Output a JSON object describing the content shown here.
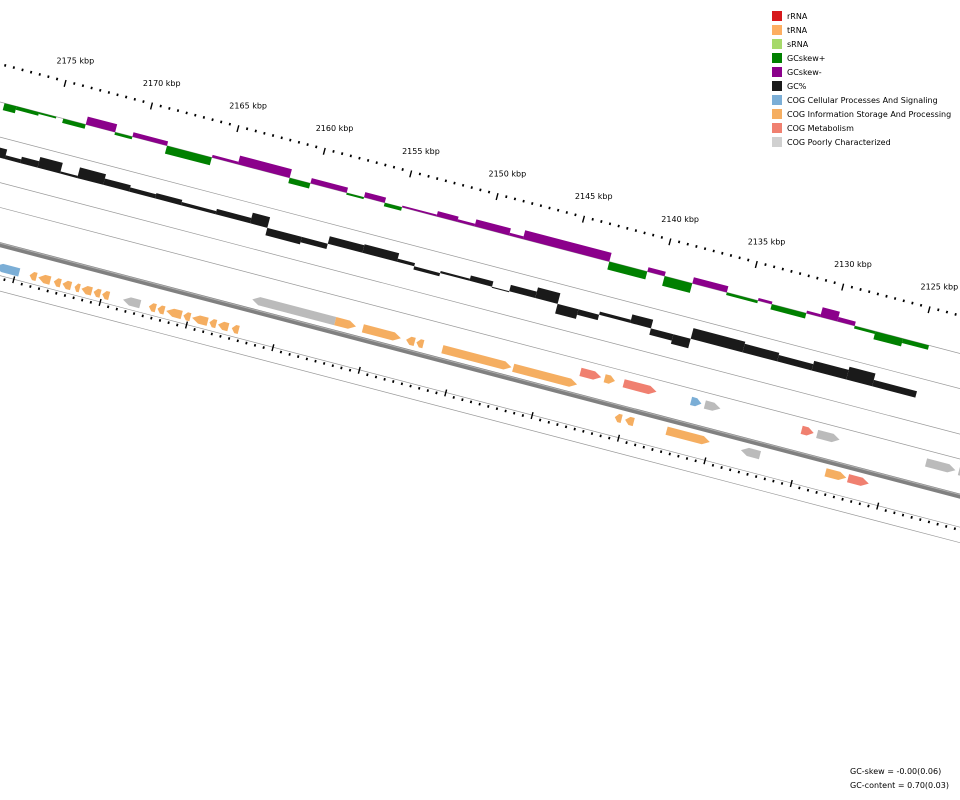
{
  "position_labels": [
    {
      "kbp": 2175,
      "label": "2175 kbp"
    },
    {
      "kbp": 2170,
      "label": "2170 kbp"
    },
    {
      "kbp": 2165,
      "label": "2165 kbp"
    },
    {
      "kbp": 2160,
      "label": "2160 kbp"
    },
    {
      "kbp": 2155,
      "label": "2155 kbp"
    },
    {
      "kbp": 2150,
      "label": "2150 kbp"
    },
    {
      "kbp": 2145,
      "label": "2145 kbp"
    },
    {
      "kbp": 2140,
      "label": "2140 kbp"
    },
    {
      "kbp": 2135,
      "label": "2135 kbp"
    },
    {
      "kbp": 2130,
      "label": "2130 kbp"
    },
    {
      "kbp": 2125,
      "label": "2125 kbp"
    }
  ],
  "legend": [
    {
      "label": "rRNA",
      "color": "#d7191c"
    },
    {
      "label": "tRNA",
      "color": "#fdae61"
    },
    {
      "label": "sRNA",
      "color": "#a6d96a"
    },
    {
      "label": "GCskew+",
      "color": "#008000"
    },
    {
      "label": "GCskew-",
      "color": "#8b008b"
    },
    {
      "label": "GC%",
      "color": "#1a1a1a"
    },
    {
      "label": "COG Cellular Processes And Signaling",
      "color": "#7baed6"
    },
    {
      "label": "COG Information Storage And Processing",
      "color": "#f5ae61"
    },
    {
      "label": "COG Metabolism",
      "color": "#f08070"
    },
    {
      "label": "COG Poorly Characterized",
      "color": "#d0d0d0"
    }
  ],
  "stats": {
    "gc_skew": "GC-skew = -0.00(0.06)",
    "gc_content": "GC-content = 0.70(0.03)"
  },
  "colors": {
    "gc_skew_plus": "#008000",
    "gc_skew_minus": "#8b008b",
    "gc_content": "#1a1a1a",
    "backbone": "#808080",
    "guide": "#999999",
    "cog_cellular": "#7baed6",
    "cog_information": "#f5ae61",
    "cog_metabolism": "#f08070",
    "cog_poor": "#bbbbbb"
  },
  "gc_skew_segments": [
    {
      "from": 2178.0,
      "to": 2177.3,
      "sign": "+",
      "magnitude": 0.8
    },
    {
      "from": 2177.3,
      "to": 2176.0,
      "sign": "+",
      "magnitude": 0.4
    },
    {
      "from": 2176.0,
      "to": 2175.0,
      "sign": "+",
      "magnitude": 0.2
    },
    {
      "from": 2174.6,
      "to": 2173.3,
      "sign": "+",
      "magnitude": 0.5
    },
    {
      "from": 2173.3,
      "to": 2171.6,
      "sign": "-",
      "magnitude": 0.9
    },
    {
      "from": 2171.6,
      "to": 2170.6,
      "sign": "+",
      "magnitude": 0.3
    },
    {
      "from": 2170.6,
      "to": 2168.6,
      "sign": "-",
      "magnitude": 0.5
    },
    {
      "from": 2168.6,
      "to": 2166.0,
      "sign": "+",
      "magnitude": 0.9
    },
    {
      "from": 2166.0,
      "to": 2164.5,
      "sign": "-",
      "magnitude": 0.3
    },
    {
      "from": 2164.5,
      "to": 2161.5,
      "sign": "-",
      "magnitude": 1.0
    },
    {
      "from": 2161.5,
      "to": 2160.3,
      "sign": "+",
      "magnitude": 0.6
    },
    {
      "from": 2160.3,
      "to": 2158.2,
      "sign": "-",
      "magnitude": 0.6
    },
    {
      "from": 2158.2,
      "to": 2157.2,
      "sign": "+",
      "magnitude": 0.2
    },
    {
      "from": 2157.2,
      "to": 2156.0,
      "sign": "-",
      "magnitude": 0.6
    },
    {
      "from": 2156.0,
      "to": 2155.0,
      "sign": "+",
      "magnitude": 0.4
    },
    {
      "from": 2155.0,
      "to": 2153.0,
      "sign": "-",
      "magnitude": 0.2
    },
    {
      "from": 2153.0,
      "to": 2151.8,
      "sign": "-",
      "magnitude": 0.6
    },
    {
      "from": 2151.8,
      "to": 2150.8,
      "sign": "-",
      "magnitude": 0.3
    },
    {
      "from": 2150.8,
      "to": 2148.8,
      "sign": "-",
      "magnitude": 0.8
    },
    {
      "from": 2148.8,
      "to": 2148.0,
      "sign": "-",
      "magnitude": 0.3
    },
    {
      "from": 2148.0,
      "to": 2143.0,
      "sign": "-",
      "magnitude": 1.0
    },
    {
      "from": 2143.0,
      "to": 2140.8,
      "sign": "+",
      "magnitude": 0.9
    },
    {
      "from": 2140.8,
      "to": 2139.8,
      "sign": "-",
      "magnitude": 0.5
    },
    {
      "from": 2139.8,
      "to": 2138.2,
      "sign": "+",
      "magnitude": 1.1
    },
    {
      "from": 2138.2,
      "to": 2136.2,
      "sign": "-",
      "magnitude": 0.7
    },
    {
      "from": 2136.2,
      "to": 2134.4,
      "sign": "+",
      "magnitude": 0.3
    },
    {
      "from": 2134.4,
      "to": 2133.6,
      "sign": "-",
      "magnitude": 0.3
    },
    {
      "from": 2133.6,
      "to": 2131.6,
      "sign": "+",
      "magnitude": 0.6
    },
    {
      "from": 2131.6,
      "to": 2130.8,
      "sign": "-",
      "magnitude": 0.3
    },
    {
      "from": 2130.8,
      "to": 2129.8,
      "sign": "-",
      "magnitude": 1.1
    },
    {
      "from": 2129.8,
      "to": 2128.8,
      "sign": "-",
      "magnitude": 0.5
    },
    {
      "from": 2128.8,
      "to": 2127.6,
      "sign": "+",
      "magnitude": 0.3
    },
    {
      "from": 2127.6,
      "to": 2126.0,
      "sign": "+",
      "magnitude": 0.9
    },
    {
      "from": 2126.0,
      "to": 2124.5,
      "sign": "+",
      "magnitude": 0.5
    }
  ],
  "gc_content_segments": [
    {
      "from": 2178.0,
      "to": 2177.2,
      "level": 0.9
    },
    {
      "from": 2177.2,
      "to": 2176.3,
      "level": 0.35
    },
    {
      "from": 2176.3,
      "to": 2175.3,
      "level": 0.6
    },
    {
      "from": 2175.3,
      "to": 2174.0,
      "level": 1.0
    },
    {
      "from": 2174.0,
      "to": 2173.0,
      "level": 0.2
    },
    {
      "from": 2173.0,
      "to": 2171.5,
      "level": 1.0
    },
    {
      "from": 2171.5,
      "to": 2170.0,
      "level": 0.6
    },
    {
      "from": 2170.0,
      "to": 2168.5,
      "level": 0.4
    },
    {
      "from": 2168.5,
      "to": 2167.0,
      "level": 0.5
    },
    {
      "from": 2167.0,
      "to": 2165.0,
      "level": 0.3
    },
    {
      "from": 2165.0,
      "to": 2163.0,
      "level": 0.5
    },
    {
      "from": 2163.0,
      "to": 2162.0,
      "level": 1.0
    },
    {
      "from": 2162.0,
      "to": 2160.0,
      "level": -0.7
    },
    {
      "from": 2160.0,
      "to": 2158.5,
      "level": -0.5
    },
    {
      "from": 2158.5,
      "to": 2156.5,
      "level": 0.7
    },
    {
      "from": 2156.5,
      "to": 2154.5,
      "level": 0.8
    },
    {
      "from": 2154.5,
      "to": 2153.5,
      "level": 0.3
    },
    {
      "from": 2153.5,
      "to": 2152.0,
      "level": -0.3
    },
    {
      "from": 2152.0,
      "to": 2150.3,
      "level": 0.2
    },
    {
      "from": 2150.3,
      "to": 2149.0,
      "level": 0.5
    },
    {
      "from": 2149.0,
      "to": 2148.0,
      "level": -0.1
    },
    {
      "from": 2148.0,
      "to": 2146.5,
      "level": 0.6
    },
    {
      "from": 2146.5,
      "to": 2145.2,
      "level": 1.0
    },
    {
      "from": 2145.2,
      "to": 2144.0,
      "level": -0.9
    },
    {
      "from": 2144.0,
      "to": 2142.8,
      "level": -0.5
    },
    {
      "from": 2142.8,
      "to": 2141.0,
      "level": 0.3
    },
    {
      "from": 2141.0,
      "to": 2139.8,
      "level": 0.8
    },
    {
      "from": 2139.8,
      "to": 2138.5,
      "level": -0.6
    },
    {
      "from": 2138.5,
      "to": 2137.5,
      "level": -0.9
    },
    {
      "from": 2137.5,
      "to": 2134.5,
      "level": 1.0
    },
    {
      "from": 2134.5,
      "to": 2132.5,
      "level": 0.8
    },
    {
      "from": 2132.5,
      "to": 2130.5,
      "level": 0.6
    },
    {
      "from": 2130.5,
      "to": 2128.5,
      "level": 0.9
    },
    {
      "from": 2128.5,
      "to": 2127.0,
      "level": 1.2
    },
    {
      "from": 2127.0,
      "to": 2124.5,
      "level": 0.6
    }
  ],
  "genes_reverse": [
    {
      "from": 2178.0,
      "to": 2177.1,
      "cog": "information"
    },
    {
      "from": 2176.9,
      "to": 2176.3,
      "cog": "metabolism"
    },
    {
      "from": 2176.2,
      "to": 2174.8,
      "cog": "cellular"
    },
    {
      "from": 2174.2,
      "to": 2173.8,
      "cog": "information"
    },
    {
      "from": 2173.7,
      "to": 2173.0,
      "cog": "information"
    },
    {
      "from": 2172.8,
      "to": 2172.4,
      "cog": "information"
    },
    {
      "from": 2172.3,
      "to": 2171.8,
      "cog": "information"
    },
    {
      "from": 2171.6,
      "to": 2171.3,
      "cog": "information"
    },
    {
      "from": 2171.2,
      "to": 2170.6,
      "cog": "information"
    },
    {
      "from": 2170.5,
      "to": 2170.1,
      "cog": "information"
    },
    {
      "from": 2170.0,
      "to": 2169.6,
      "cog": "information"
    },
    {
      "from": 2168.8,
      "to": 2167.8,
      "cog": "poor"
    },
    {
      "from": 2167.3,
      "to": 2166.9,
      "cog": "information"
    },
    {
      "from": 2166.8,
      "to": 2166.4,
      "cog": "information"
    },
    {
      "from": 2166.3,
      "to": 2165.4,
      "cog": "information"
    },
    {
      "from": 2165.3,
      "to": 2164.9,
      "cog": "information"
    },
    {
      "from": 2164.8,
      "to": 2163.9,
      "cog": "information"
    },
    {
      "from": 2163.8,
      "to": 2163.4,
      "cog": "information"
    },
    {
      "from": 2163.3,
      "to": 2162.7,
      "cog": "information"
    },
    {
      "from": 2162.5,
      "to": 2162.1,
      "cog": "information"
    }
  ],
  "genes_upper": [
    {
      "from": 2161.8,
      "to": 2157.0,
      "strand": "-",
      "cog": "poor"
    },
    {
      "from": 2157.0,
      "to": 2155.8,
      "strand": "+",
      "cog": "information"
    },
    {
      "from": 2155.4,
      "to": 2153.2,
      "strand": "+",
      "cog": "information"
    },
    {
      "from": 2152.9,
      "to": 2152.4,
      "strand": "-",
      "cog": "information"
    },
    {
      "from": 2152.3,
      "to": 2151.9,
      "strand": "-",
      "cog": "information"
    },
    {
      "from": 2150.8,
      "to": 2146.8,
      "strand": "+",
      "cog": "information"
    },
    {
      "from": 2146.7,
      "to": 2143.0,
      "strand": "+",
      "cog": "information"
    }
  ],
  "genes_forward": [
    {
      "from": 2143.0,
      "to": 2141.8,
      "cog": "metabolism"
    },
    {
      "from": 2141.6,
      "to": 2141.0,
      "cog": "information"
    },
    {
      "from": 2140.5,
      "to": 2138.6,
      "cog": "metabolism"
    },
    {
      "from": 2136.6,
      "to": 2136.0,
      "cog": "cellular"
    },
    {
      "from": 2135.8,
      "to": 2134.9,
      "cog": "poor"
    },
    {
      "from": 2130.2,
      "to": 2129.5,
      "cog": "metabolism"
    },
    {
      "from": 2129.3,
      "to": 2128.0,
      "cog": "poor"
    },
    {
      "from": 2123.0,
      "to": 2121.3,
      "cog": "poor"
    },
    {
      "from": 2121.1,
      "to": 2119.9,
      "cog": "poor"
    },
    {
      "from": 2119.7,
      "to": 2117.5,
      "cog": "poor"
    }
  ],
  "genes_lower": [
    {
      "from": 2140.5,
      "to": 2140.1,
      "strand": "-",
      "cog": "information"
    },
    {
      "from": 2139.9,
      "to": 2139.4,
      "strand": "-",
      "cog": "information"
    },
    {
      "from": 2137.5,
      "to": 2135.0,
      "strand": "+",
      "cog": "information"
    },
    {
      "from": 2133.2,
      "to": 2132.1,
      "strand": "-",
      "cog": "poor"
    },
    {
      "from": 2128.3,
      "to": 2127.1,
      "strand": "+",
      "cog": "information"
    },
    {
      "from": 2127.0,
      "to": 2125.8,
      "strand": "+",
      "cog": "metabolism"
    }
  ]
}
